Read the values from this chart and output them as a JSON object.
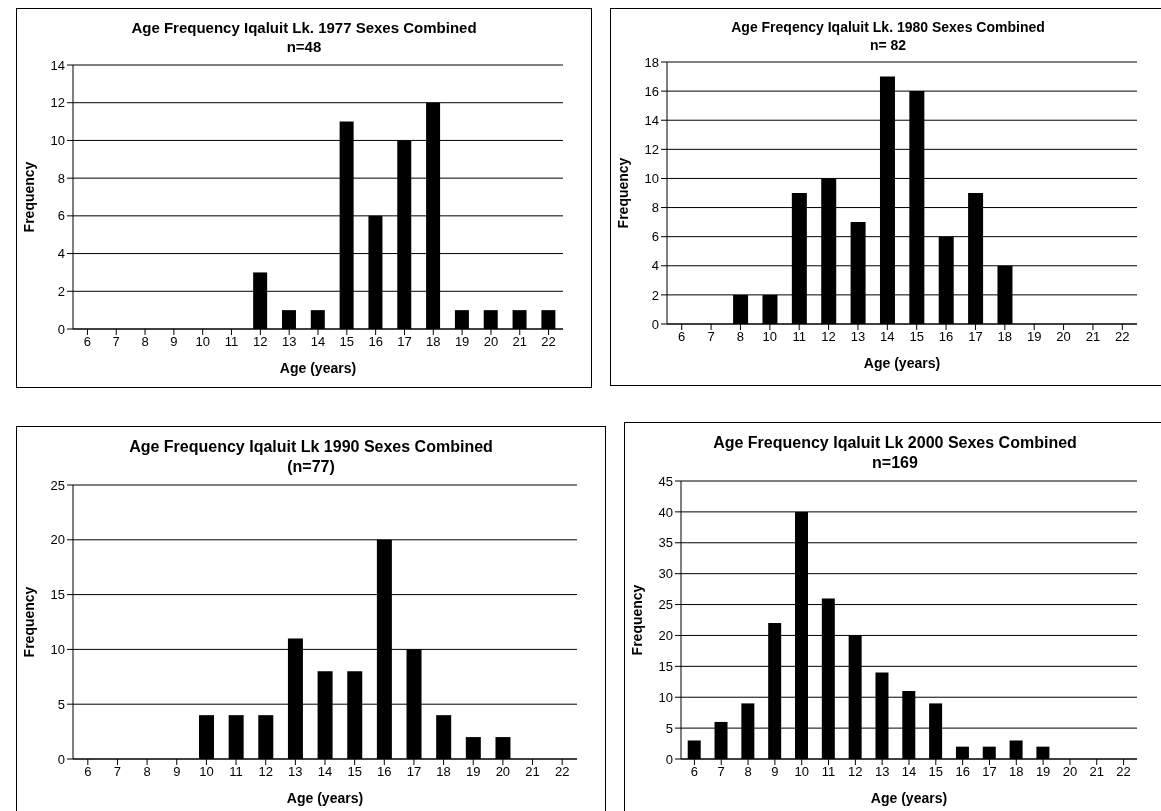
{
  "chart_data": [
    {
      "type": "bar",
      "title": "Age Frequency Iqaluit Lk. 1977 Sexes Combined",
      "subtitle": "n=48",
      "xlabel": "Age (years)",
      "ylabel": "Frequency",
      "categories": [
        "6",
        "7",
        "8",
        "9",
        "10",
        "11",
        "12",
        "13",
        "14",
        "15",
        "16",
        "17",
        "18",
        "19",
        "20",
        "21",
        "22"
      ],
      "values": [
        0,
        0,
        0,
        0,
        0,
        0,
        3,
        1,
        1,
        11,
        6,
        10,
        12,
        1,
        1,
        1,
        1
      ],
      "color": "#000000",
      "ylim": [
        0,
        14
      ],
      "yticks": [
        0,
        2,
        4,
        6,
        8,
        10,
        12,
        14
      ],
      "grid": "y",
      "legend": false
    },
    {
      "type": "bar",
      "title": "Age Freqency Iqaluit Lk. 1980 Sexes Combined",
      "subtitle": "n= 82",
      "xlabel": "Age (years)",
      "ylabel": "Frequency",
      "categories": [
        "6",
        "7",
        "8",
        "10",
        "11",
        "12",
        "13",
        "14",
        "15",
        "16",
        "17",
        "18",
        "19",
        "20",
        "21",
        "22"
      ],
      "values": [
        0,
        0,
        2,
        2,
        9,
        10,
        7,
        17,
        16,
        6,
        9,
        4,
        0,
        0,
        0,
        0
      ],
      "color": "#000000",
      "ylim": [
        0,
        18
      ],
      "yticks": [
        0,
        2,
        4,
        6,
        8,
        10,
        12,
        14,
        16,
        18
      ],
      "grid": "y",
      "legend": false
    },
    {
      "type": "bar",
      "title": "Age Frequency Iqaluit Lk 1990 Sexes Combined",
      "subtitle": "(n=77)",
      "xlabel": "Age (years)",
      "ylabel": "Frequency",
      "categories": [
        "6",
        "7",
        "8",
        "9",
        "10",
        "11",
        "12",
        "13",
        "14",
        "15",
        "16",
        "17",
        "18",
        "19",
        "20",
        "21",
        "22"
      ],
      "values": [
        0,
        0,
        0,
        0,
        4,
        4,
        4,
        11,
        8,
        8,
        20,
        10,
        4,
        2,
        2,
        0,
        0
      ],
      "color": "#000000",
      "ylim": [
        0,
        25
      ],
      "yticks": [
        0,
        5,
        10,
        15,
        20,
        25
      ],
      "grid": "y",
      "legend": false
    },
    {
      "type": "bar",
      "title": "Age Frequency Iqaluit Lk 2000 Sexes Combined",
      "subtitle": "n=169",
      "xlabel": "Age (years)",
      "ylabel": "Frequency",
      "categories": [
        "6",
        "7",
        "8",
        "9",
        "10",
        "11",
        "12",
        "13",
        "14",
        "15",
        "16",
        "17",
        "18",
        "19",
        "20",
        "21",
        "22"
      ],
      "values": [
        3,
        6,
        9,
        22,
        40,
        26,
        20,
        14,
        11,
        9,
        2,
        2,
        3,
        2,
        0,
        0,
        0
      ],
      "color": "#000000",
      "ylim": [
        0,
        45
      ],
      "yticks": [
        0,
        5,
        10,
        15,
        20,
        25,
        30,
        35,
        40,
        45
      ],
      "grid": "y",
      "legend": false
    }
  ]
}
